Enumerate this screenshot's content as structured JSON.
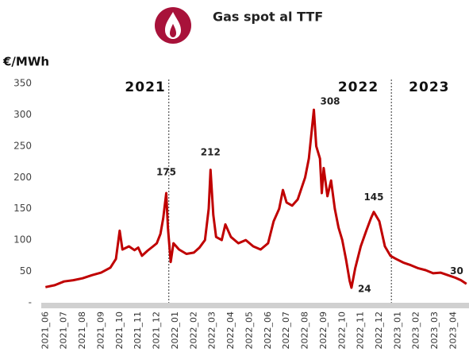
{
  "chart_data": {
    "type": "line",
    "title": "Gas spot al TTF",
    "y_axis_label": "€/MWh",
    "ylim": [
      0,
      350
    ],
    "yticks": [
      {
        "value": 0,
        "label": "-"
      },
      50,
      100,
      150,
      200,
      250,
      300,
      350
    ],
    "xlim": [
      -0.1,
      22.75
    ],
    "xticks": [
      {
        "value": 0,
        "label": "2021_06"
      },
      {
        "value": 1,
        "label": "2021_07"
      },
      {
        "value": 2,
        "label": "2021_08"
      },
      {
        "value": 3,
        "label": "2021_09"
      },
      {
        "value": 4,
        "label": "2021_10"
      },
      {
        "value": 5,
        "label": "2021_11"
      },
      {
        "value": 6,
        "label": "2021_12"
      },
      {
        "value": 7,
        "label": "2022_01"
      },
      {
        "value": 8,
        "label": "2022_02"
      },
      {
        "value": 9,
        "label": "2022_03"
      },
      {
        "value": 10,
        "label": "2022_04"
      },
      {
        "value": 11,
        "label": "2022_05"
      },
      {
        "value": 12,
        "label": "2022_06"
      },
      {
        "value": 13,
        "label": "2022_07"
      },
      {
        "value": 14,
        "label": "2022_08"
      },
      {
        "value": 15,
        "label": "2022_09"
      },
      {
        "value": 16,
        "label": "2022_10"
      },
      {
        "value": 17,
        "label": "2022_11"
      },
      {
        "value": 18,
        "label": "2022_12"
      },
      {
        "value": 19,
        "label": "2023_01"
      },
      {
        "value": 20,
        "label": "2023_02"
      },
      {
        "value": 21,
        "label": "2023_03"
      },
      {
        "value": 22,
        "label": "2023_04"
      }
    ],
    "series": [
      {
        "color": "#c00000",
        "x": [
          0,
          0.5,
          1,
          1.5,
          2,
          2.5,
          3,
          3.5,
          3.8,
          4.0,
          4.15,
          4.5,
          4.8,
          5.0,
          5.2,
          5.5,
          5.8,
          6.0,
          6.2,
          6.35,
          6.51,
          6.6,
          6.75,
          6.9,
          7.2,
          7.6,
          8.0,
          8.3,
          8.6,
          8.8,
          8.9,
          9.05,
          9.2,
          9.5,
          9.7,
          10.0,
          10.4,
          10.8,
          11.2,
          11.6,
          12.0,
          12.3,
          12.6,
          12.8,
          13.0,
          13.3,
          13.6,
          14.0,
          14.2,
          14.47,
          14.6,
          14.8,
          14.9,
          15.0,
          15.2,
          15.4,
          15.6,
          15.8,
          16.0,
          16.2,
          16.4,
          16.5,
          16.7,
          17.0,
          17.3,
          17.55,
          17.7,
          18.0,
          18.3,
          18.6,
          18.9,
          19.3,
          19.7,
          20.1,
          20.5,
          20.9,
          21.3,
          21.7,
          22.1,
          22.4,
          22.7
        ],
        "values": [
          25,
          28,
          34,
          36,
          39,
          44,
          48,
          56,
          70,
          115,
          85,
          90,
          84,
          88,
          75,
          83,
          90,
          95,
          110,
          135,
          175,
          120,
          65,
          95,
          85,
          78,
          80,
          88,
          100,
          150,
          212,
          140,
          105,
          100,
          125,
          105,
          95,
          100,
          90,
          85,
          95,
          130,
          150,
          180,
          160,
          155,
          165,
          200,
          230,
          308,
          250,
          230,
          175,
          215,
          170,
          195,
          150,
          120,
          100,
          70,
          35,
          24,
          55,
          90,
          115,
          135,
          145,
          130,
          90,
          75,
          70,
          64,
          60,
          55,
          52,
          47,
          48,
          44,
          40,
          36,
          30
        ]
      }
    ],
    "annotations": [
      {
        "label": "175",
        "x": 6.51,
        "y": 175
      },
      {
        "label": "212",
        "x": 8.9,
        "y": 212
      },
      {
        "label": "308",
        "x": 14.47,
        "y": 308
      },
      {
        "label": "24",
        "x": 16.5,
        "y": 24
      },
      {
        "label": "145",
        "x": 17.7,
        "y": 145
      },
      {
        "label": "30",
        "x": 22.7,
        "y": 30
      }
    ],
    "dividers": [
      6.65,
      18.65
    ],
    "periods": [
      "2021",
      "2022",
      "2023"
    ]
  }
}
